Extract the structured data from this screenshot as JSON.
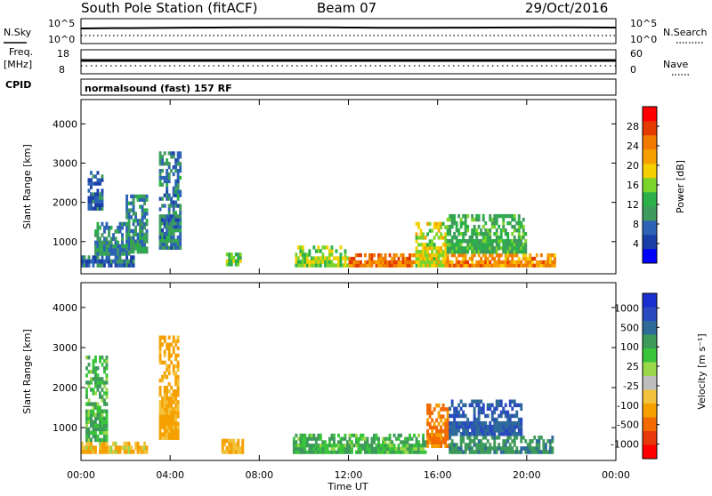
{
  "header": {
    "station": "South Pole Station (fitACF)",
    "beam": "Beam 07",
    "date": "29/Oct/2016"
  },
  "top_panels": {
    "nsky_label": "N.Sky",
    "nsearch_label": "N.Search",
    "nsky_ticks": [
      "10^5",
      "10^0"
    ],
    "freq_label": "Freq.",
    "freq_unit": "[MHz]",
    "freq_ticks": [
      "18",
      "8"
    ],
    "nave_label": "Nave",
    "nave_ticks": [
      "60",
      "0"
    ],
    "cpid_label": "CPID",
    "cpid_text": "normalsound (fast) 157 RF"
  },
  "colors": {
    "power": [
      "#0000ff",
      "#1a3ea8",
      "#2d63b4",
      "#3f9a5e",
      "#2bb04a",
      "#7ad42a",
      "#f5d000",
      "#f5a000",
      "#f07a00",
      "#e43a00",
      "#ff0000"
    ],
    "velocity": [
      "#ff0000",
      "#e8380a",
      "#f26a00",
      "#f6a000",
      "#f2c23c",
      "#bebebe",
      "#9ad84a",
      "#39c43a",
      "#3e9a5a",
      "#2e6a9a",
      "#2a4abf",
      "#1a2fd0"
    ]
  },
  "chart_data": [
    {
      "type": "heatmap",
      "title": "Power",
      "xlabel": "",
      "ylabel": "Slant Range [km]",
      "x_ticks": [
        "00:00",
        "04:00",
        "08:00",
        "12:00",
        "16:00",
        "20:00",
        "00:00"
      ],
      "x_range_hours": [
        0,
        24
      ],
      "y_ticks": [
        "1000",
        "2000",
        "3000",
        "4000"
      ],
      "ylim": [
        180,
        4620
      ],
      "colorbar": {
        "label": "Power [dB]",
        "ticks": [
          "4",
          "8",
          "12",
          "16",
          "20",
          "24",
          "28"
        ],
        "range": [
          0,
          32
        ]
      },
      "regions": [
        {
          "t0": 0.0,
          "t1": 2.4,
          "r0": 350,
          "r1": 650,
          "level": 6
        },
        {
          "t0": 0.6,
          "t1": 2.2,
          "r0": 650,
          "r1": 1500,
          "level": 9
        },
        {
          "t0": 0.3,
          "t1": 1.0,
          "r0": 1800,
          "r1": 2800,
          "level": 6
        },
        {
          "t0": 2.0,
          "t1": 3.0,
          "r0": 700,
          "r1": 2200,
          "level": 9
        },
        {
          "t0": 3.5,
          "t1": 4.5,
          "r0": 800,
          "r1": 3300,
          "level": 8
        },
        {
          "t0": 6.5,
          "t1": 7.2,
          "r0": 380,
          "r1": 720,
          "level": 14
        },
        {
          "t0": 9.6,
          "t1": 12.0,
          "r0": 350,
          "r1": 900,
          "level": 16
        },
        {
          "t0": 12.0,
          "t1": 15.0,
          "r0": 350,
          "r1": 700,
          "level": 26
        },
        {
          "t0": 15.0,
          "t1": 16.4,
          "r0": 350,
          "r1": 1500,
          "level": 18
        },
        {
          "t0": 16.4,
          "t1": 21.3,
          "r0": 350,
          "r1": 700,
          "level": 24
        },
        {
          "t0": 16.4,
          "t1": 20.0,
          "r0": 700,
          "r1": 1700,
          "level": 12
        }
      ]
    },
    {
      "type": "heatmap",
      "title": "Velocity",
      "xlabel": "Time UT",
      "ylabel": "Slant Range [km]",
      "x_ticks": [
        "00:00",
        "04:00",
        "08:00",
        "12:00",
        "16:00",
        "20:00",
        "00:00"
      ],
      "x_range_hours": [
        0,
        24
      ],
      "y_ticks": [
        "1000",
        "2000",
        "3000",
        "4000"
      ],
      "ylim": [
        180,
        4620
      ],
      "colorbar": {
        "label": "Velocity [m s⁻¹]",
        "ticks": [
          "1000",
          "500",
          "100",
          "25",
          "-25",
          "-100",
          "-500",
          "-1000"
        ]
      },
      "regions": [
        {
          "t0": 0.0,
          "t1": 3.0,
          "r0": 350,
          "r1": 650,
          "level": -100
        },
        {
          "t0": 0.2,
          "t1": 1.2,
          "r0": 650,
          "r1": 2800,
          "level": 100
        },
        {
          "t0": 3.5,
          "t1": 4.4,
          "r0": 700,
          "r1": 3300,
          "level": -150
        },
        {
          "t0": 6.3,
          "t1": 7.3,
          "r0": 350,
          "r1": 720,
          "level": -100
        },
        {
          "t0": 9.5,
          "t1": 15.5,
          "r0": 350,
          "r1": 850,
          "level": 100
        },
        {
          "t0": 15.5,
          "t1": 16.5,
          "r0": 500,
          "r1": 1600,
          "level": -300
        },
        {
          "t0": 16.5,
          "t1": 21.2,
          "r0": 350,
          "r1": 800,
          "level": 200
        },
        {
          "t0": 16.5,
          "t1": 19.8,
          "r0": 800,
          "r1": 1700,
          "level": 500
        }
      ]
    }
  ]
}
